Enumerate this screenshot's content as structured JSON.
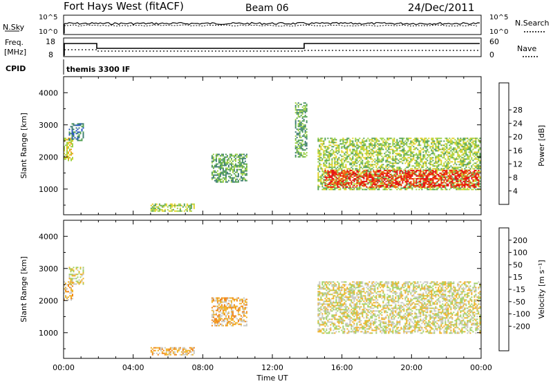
{
  "header": {
    "station": "Fort Hays West (fitACF)",
    "beam": "Beam 06",
    "date": "24/Dec/2011"
  },
  "top_panels": {
    "nsky_label": "N.Sky",
    "nsky_ticks": [
      "10^5",
      "10^0"
    ],
    "nsearch_label": "N.Search",
    "nsearch_ticks": [
      "10^5",
      "10^0"
    ],
    "freq_label_1": "Freq.",
    "freq_label_2": "[MHz]",
    "freq_ticks": [
      "18",
      "8"
    ],
    "nave_label": "Nave",
    "nave_ticks": [
      "60",
      "0"
    ],
    "cpid_label": "CPID",
    "cpid_value": "themis 3300 IF"
  },
  "chart_data": [
    {
      "type": "heatmap",
      "name": "power",
      "ylabel": "Slant Range [km]",
      "xlabel": "",
      "x_ticks": [
        "00:00",
        "04:00",
        "08:00",
        "12:00",
        "16:00",
        "20:00",
        "00:00"
      ],
      "x_range_hours": [
        0,
        24
      ],
      "y_ticks": [
        1000,
        2000,
        3000,
        4000
      ],
      "ylim": [
        200,
        4500
      ],
      "colorbar": {
        "label": "Power [dB]",
        "ticks": [
          "4",
          "8",
          "12",
          "16",
          "20",
          "24",
          "28"
        ],
        "colors": [
          "#1010e0",
          "#2050c0",
          "#3a7a70",
          "#50a050",
          "#9ad040",
          "#e0d020",
          "#f2a010",
          "#f06010",
          "#e81010"
        ]
      },
      "regions": [
        {
          "t0": 0.0,
          "t1": 0.5,
          "r0": 1900,
          "r1": 2600,
          "level": 5
        },
        {
          "t0": 0.3,
          "t1": 1.1,
          "r0": 2500,
          "r1": 3050,
          "level": 2
        },
        {
          "t0": 5.0,
          "t1": 7.5,
          "r0": 300,
          "r1": 550,
          "level": 4
        },
        {
          "t0": 8.5,
          "t1": 10.5,
          "r0": 1200,
          "r1": 2100,
          "level": 3
        },
        {
          "t0": 13.3,
          "t1": 14.0,
          "r0": 2000,
          "r1": 3700,
          "level": 3
        },
        {
          "t0": 14.6,
          "t1": 23.9,
          "r0": 1000,
          "r1": 2600,
          "level": 4
        },
        {
          "t0": 15.0,
          "t1": 23.9,
          "r0": 1050,
          "r1": 1600,
          "level": 8
        }
      ]
    },
    {
      "type": "heatmap",
      "name": "velocity",
      "ylabel": "Slant Range [km]",
      "xlabel": "Time UT",
      "x_ticks": [
        "00:00",
        "04:00",
        "08:00",
        "12:00",
        "16:00",
        "20:00",
        "00:00"
      ],
      "x_range_hours": [
        0,
        24
      ],
      "y_ticks": [
        1000,
        2000,
        3000,
        4000
      ],
      "ylim": [
        200,
        4500
      ],
      "colorbar": {
        "label": "Velocity [m s⁻¹]",
        "ticks": [
          "200",
          "100",
          "50",
          "15",
          "-15",
          "-50",
          "-100",
          "-200"
        ],
        "colors": [
          "#1c1cc8",
          "#3060b0",
          "#2e7a50",
          "#40a840",
          "#a0d060",
          "#c8c8c0",
          "#f0b020",
          "#f08010",
          "#f04010",
          "#e81010"
        ]
      },
      "regions": [
        {
          "t0": 0.0,
          "t1": 0.5,
          "r0": 2000,
          "r1": 2600,
          "level": 6
        },
        {
          "t0": 0.3,
          "t1": 1.1,
          "r0": 2500,
          "r1": 3050,
          "level": 5
        },
        {
          "t0": 5.0,
          "t1": 7.5,
          "r0": 300,
          "r1": 550,
          "level": 6
        },
        {
          "t0": 8.5,
          "t1": 10.5,
          "r0": 1200,
          "r1": 2100,
          "level": 6
        },
        {
          "t0": 14.6,
          "t1": 23.9,
          "r0": 1000,
          "r1": 2600,
          "level": 5
        }
      ]
    }
  ]
}
